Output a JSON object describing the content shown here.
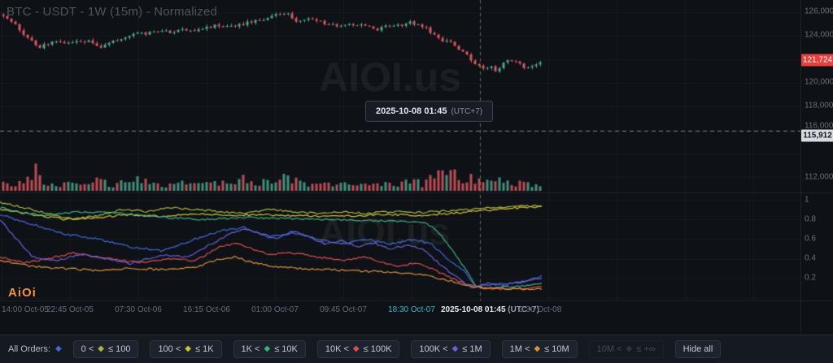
{
  "header": {
    "title": "BTC - USDT - 1W (15m) - Normalized"
  },
  "watermark": "AIOI.us",
  "logo_text": "AiOi",
  "tooltip": {
    "time": "2025-10-08 01:45",
    "tz": "(UTC+7)"
  },
  "price_axis": {
    "ticks": [
      "126,000",
      "124,000",
      "120,000",
      "118,000",
      "116,000",
      "112,000"
    ],
    "last_price_label": "121,724",
    "level_label": "115,912"
  },
  "lower_axis": {
    "ticks": [
      "1",
      "0.8",
      "0.6",
      "0.4",
      "0.2"
    ]
  },
  "time_axis": {
    "labels": [
      "14:00 Oct-05",
      "22:45 Oct-05",
      "07:30 Oct-06",
      "16:15 Oct-06",
      "01:00 Oct-07",
      "09:45 Oct-07",
      "18:30 Oct-07",
      "3:30 Oct-08"
    ],
    "crosshair_time": "2025-10-08 01:45",
    "crosshair_tz": "(UTC+7)"
  },
  "toolbar": {
    "all_orders_label": "All Orders:",
    "all_orders_diamond": "#3f6ad8",
    "diamond_glyph": "◆",
    "buttons": [
      {
        "prefix": "0 <",
        "suffix": "≤ 100",
        "diamond": "#a8b840"
      },
      {
        "prefix": "100 <",
        "suffix": "≤ 1K",
        "diamond": "#cdc23f"
      },
      {
        "prefix": "1K <",
        "suffix": "≤ 10K",
        "diamond": "#3fae7e"
      },
      {
        "prefix": "10K <",
        "suffix": "≤ 100K",
        "diamond": "#d84f4f"
      },
      {
        "prefix": "100K <",
        "suffix": "≤ 1M",
        "diamond": "#6a60d8"
      },
      {
        "prefix": "1M <",
        "suffix": "≤ 10M",
        "diamond": "#d8913f"
      },
      {
        "prefix": "10M <",
        "suffix": "≤ +∞",
        "diamond": "#4a4f57"
      }
    ],
    "hide_all_label": "Hide all"
  },
  "colors": {
    "up_candle": "#4ea58c",
    "down_candle": "#d9575f",
    "last_price_bg": "#e8403c",
    "level_bg": "#d6dae1",
    "accent_orange": "#f0953f"
  },
  "chart_data": {
    "type": "mixed",
    "panels": [
      {
        "name": "price-candles",
        "unit": "USDT",
        "visible_range": [
          112000,
          127000
        ]
      },
      {
        "name": "volume"
      },
      {
        "name": "normalized-order-size-lines",
        "visible_range": [
          0,
          1
        ]
      }
    ],
    "last_price": 121724,
    "dashed_level": 115912,
    "crosshair": {
      "x": 590,
      "time": "2025-10-08 01:45 (UTC+7)"
    },
    "price_path": [
      [
        0,
        125900
      ],
      [
        8,
        125600
      ],
      [
        18,
        124900
      ],
      [
        28,
        124100
      ],
      [
        40,
        123400
      ],
      [
        48,
        122900
      ],
      [
        58,
        123300
      ],
      [
        70,
        123500
      ],
      [
        85,
        123300
      ],
      [
        100,
        123600
      ],
      [
        112,
        123400
      ],
      [
        122,
        122900
      ],
      [
        130,
        123200
      ],
      [
        145,
        123600
      ],
      [
        158,
        123900
      ],
      [
        170,
        124300
      ],
      [
        180,
        124100
      ],
      [
        195,
        124400
      ],
      [
        210,
        124200
      ],
      [
        225,
        124500
      ],
      [
        240,
        124400
      ],
      [
        255,
        124700
      ],
      [
        270,
        124900
      ],
      [
        285,
        124700
      ],
      [
        300,
        125000
      ],
      [
        315,
        125200
      ],
      [
        330,
        125500
      ],
      [
        345,
        125800
      ],
      [
        352,
        125900
      ],
      [
        360,
        125400
      ],
      [
        370,
        125100
      ],
      [
        382,
        125400
      ],
      [
        392,
        125200
      ],
      [
        405,
        124900
      ],
      [
        420,
        124700
      ],
      [
        435,
        125000
      ],
      [
        450,
        124700
      ],
      [
        465,
        124500
      ],
      [
        478,
        124800
      ],
      [
        492,
        124900
      ],
      [
        505,
        125100
      ],
      [
        515,
        124900
      ],
      [
        525,
        124500
      ],
      [
        535,
        124000
      ],
      [
        545,
        123400
      ],
      [
        552,
        123700
      ],
      [
        560,
        123100
      ],
      [
        570,
        122500
      ],
      [
        580,
        121900
      ],
      [
        588,
        121400
      ],
      [
        595,
        121100
      ],
      [
        602,
        121500
      ],
      [
        610,
        121000
      ],
      [
        618,
        121600
      ],
      [
        626,
        121900
      ],
      [
        634,
        121700
      ],
      [
        642,
        121400
      ],
      [
        650,
        121200
      ],
      [
        658,
        121500
      ],
      [
        666,
        121724
      ]
    ],
    "volume_profile": [
      [
        0,
        12
      ],
      [
        20,
        9
      ],
      [
        44,
        34
      ],
      [
        52,
        20
      ],
      [
        70,
        10
      ],
      [
        90,
        12
      ],
      [
        120,
        18
      ],
      [
        140,
        10
      ],
      [
        170,
        22
      ],
      [
        190,
        12
      ],
      [
        210,
        10
      ],
      [
        230,
        16
      ],
      [
        250,
        12
      ],
      [
        262,
        18
      ],
      [
        280,
        12
      ],
      [
        300,
        24
      ],
      [
        315,
        14
      ],
      [
        330,
        20
      ],
      [
        345,
        18
      ],
      [
        352,
        30
      ],
      [
        360,
        22
      ],
      [
        375,
        14
      ],
      [
        400,
        14
      ],
      [
        420,
        10
      ],
      [
        440,
        16
      ],
      [
        455,
        10
      ],
      [
        470,
        12
      ],
      [
        490,
        10
      ],
      [
        505,
        18
      ],
      [
        520,
        12
      ],
      [
        535,
        26
      ],
      [
        545,
        34
      ],
      [
        552,
        30
      ],
      [
        560,
        26
      ],
      [
        572,
        22
      ],
      [
        588,
        20
      ],
      [
        600,
        16
      ],
      [
        614,
        18
      ],
      [
        630,
        14
      ],
      [
        650,
        12
      ],
      [
        666,
        10
      ]
    ],
    "series": [
      {
        "name": "All Orders",
        "color": "#3f6ad8",
        "points": [
          [
            0,
            0.85
          ],
          [
            40,
            0.75
          ],
          [
            80,
            0.65
          ],
          [
            120,
            0.6
          ],
          [
            160,
            0.52
          ],
          [
            200,
            0.48
          ],
          [
            240,
            0.6
          ],
          [
            270,
            0.68
          ],
          [
            300,
            0.72
          ],
          [
            330,
            0.62
          ],
          [
            360,
            0.66
          ],
          [
            390,
            0.6
          ],
          [
            420,
            0.55
          ],
          [
            450,
            0.6
          ],
          [
            480,
            0.55
          ],
          [
            510,
            0.6
          ],
          [
            530,
            0.55
          ],
          [
            550,
            0.4
          ],
          [
            570,
            0.28
          ],
          [
            585,
            0.12
          ],
          [
            600,
            0.15
          ],
          [
            620,
            0.14
          ],
          [
            640,
            0.16
          ],
          [
            666,
            0.22
          ]
        ]
      },
      {
        "name": "0-100",
        "color": "#a8b840",
        "points": [
          [
            0,
            0.97
          ],
          [
            30,
            0.92
          ],
          [
            60,
            0.86
          ],
          [
            90,
            0.8
          ],
          [
            120,
            0.84
          ],
          [
            150,
            0.9
          ],
          [
            180,
            0.88
          ],
          [
            210,
            0.92
          ],
          [
            240,
            0.9
          ],
          [
            270,
            0.88
          ],
          [
            300,
            0.86
          ],
          [
            330,
            0.9
          ],
          [
            360,
            0.88
          ],
          [
            390,
            0.86
          ],
          [
            420,
            0.88
          ],
          [
            450,
            0.86
          ],
          [
            480,
            0.88
          ],
          [
            510,
            0.87
          ],
          [
            540,
            0.88
          ],
          [
            570,
            0.9
          ],
          [
            600,
            0.92
          ],
          [
            630,
            0.93
          ],
          [
            666,
            0.94
          ]
        ]
      },
      {
        "name": "100-1K",
        "color": "#cdc23f",
        "points": [
          [
            0,
            0.9
          ],
          [
            40,
            0.85
          ],
          [
            80,
            0.8
          ],
          [
            120,
            0.82
          ],
          [
            160,
            0.85
          ],
          [
            200,
            0.83
          ],
          [
            240,
            0.86
          ],
          [
            280,
            0.84
          ],
          [
            320,
            0.85
          ],
          [
            360,
            0.84
          ],
          [
            400,
            0.83
          ],
          [
            440,
            0.84
          ],
          [
            480,
            0.85
          ],
          [
            520,
            0.84
          ],
          [
            550,
            0.86
          ],
          [
            580,
            0.88
          ],
          [
            610,
            0.9
          ],
          [
            640,
            0.92
          ],
          [
            666,
            0.93
          ]
        ]
      },
      {
        "name": "1K-10K",
        "color": "#3fae7e",
        "points": [
          [
            0,
            0.92
          ],
          [
            50,
            0.84
          ],
          [
            100,
            0.88
          ],
          [
            150,
            0.86
          ],
          [
            200,
            0.82
          ],
          [
            250,
            0.8
          ],
          [
            300,
            0.82
          ],
          [
            350,
            0.81
          ],
          [
            400,
            0.8
          ],
          [
            450,
            0.79
          ],
          [
            500,
            0.78
          ],
          [
            525,
            0.76
          ],
          [
            540,
            0.66
          ],
          [
            555,
            0.5
          ],
          [
            570,
            0.32
          ],
          [
            585,
            0.12
          ],
          [
            600,
            0.1
          ],
          [
            630,
            0.12
          ],
          [
            666,
            0.14
          ]
        ]
      },
      {
        "name": "10K-100K",
        "color": "#d84f4f",
        "points": [
          [
            0,
            0.42
          ],
          [
            30,
            0.36
          ],
          [
            60,
            0.4
          ],
          [
            90,
            0.46
          ],
          [
            120,
            0.42
          ],
          [
            150,
            0.38
          ],
          [
            180,
            0.36
          ],
          [
            210,
            0.4
          ],
          [
            240,
            0.38
          ],
          [
            270,
            0.52
          ],
          [
            290,
            0.56
          ],
          [
            310,
            0.5
          ],
          [
            330,
            0.44
          ],
          [
            360,
            0.46
          ],
          [
            390,
            0.42
          ],
          [
            420,
            0.38
          ],
          [
            450,
            0.42
          ],
          [
            470,
            0.36
          ],
          [
            490,
            0.32
          ],
          [
            510,
            0.36
          ],
          [
            530,
            0.3
          ],
          [
            550,
            0.22
          ],
          [
            570,
            0.15
          ],
          [
            590,
            0.1
          ],
          [
            620,
            0.09
          ],
          [
            640,
            0.1
          ],
          [
            666,
            0.11
          ]
        ]
      },
      {
        "name": "100K-1M",
        "color": "#6a60d8",
        "points": [
          [
            0,
            0.8
          ],
          [
            20,
            0.6
          ],
          [
            40,
            0.42
          ],
          [
            70,
            0.38
          ],
          [
            100,
            0.45
          ],
          [
            130,
            0.4
          ],
          [
            160,
            0.35
          ],
          [
            200,
            0.44
          ],
          [
            230,
            0.42
          ],
          [
            260,
            0.55
          ],
          [
            280,
            0.65
          ],
          [
            300,
            0.7
          ],
          [
            320,
            0.66
          ],
          [
            340,
            0.6
          ],
          [
            360,
            0.68
          ],
          [
            380,
            0.62
          ],
          [
            400,
            0.55
          ],
          [
            420,
            0.58
          ],
          [
            440,
            0.52
          ],
          [
            460,
            0.56
          ],
          [
            480,
            0.5
          ],
          [
            500,
            0.54
          ],
          [
            520,
            0.5
          ],
          [
            540,
            0.35
          ],
          [
            560,
            0.22
          ],
          [
            580,
            0.1
          ],
          [
            600,
            0.14
          ],
          [
            620,
            0.13
          ],
          [
            640,
            0.17
          ],
          [
            666,
            0.21
          ]
        ]
      },
      {
        "name": "1M-10M",
        "color": "#d8913f",
        "points": [
          [
            0,
            0.38
          ],
          [
            40,
            0.32
          ],
          [
            80,
            0.3
          ],
          [
            120,
            0.28
          ],
          [
            160,
            0.3
          ],
          [
            200,
            0.29
          ],
          [
            240,
            0.31
          ],
          [
            270,
            0.4
          ],
          [
            290,
            0.42
          ],
          [
            310,
            0.36
          ],
          [
            340,
            0.32
          ],
          [
            370,
            0.3
          ],
          [
            400,
            0.29
          ],
          [
            430,
            0.28
          ],
          [
            460,
            0.27
          ],
          [
            490,
            0.26
          ],
          [
            520,
            0.24
          ],
          [
            550,
            0.18
          ],
          [
            580,
            0.12
          ],
          [
            610,
            0.1
          ],
          [
            640,
            0.09
          ],
          [
            666,
            0.09
          ]
        ]
      }
    ]
  }
}
